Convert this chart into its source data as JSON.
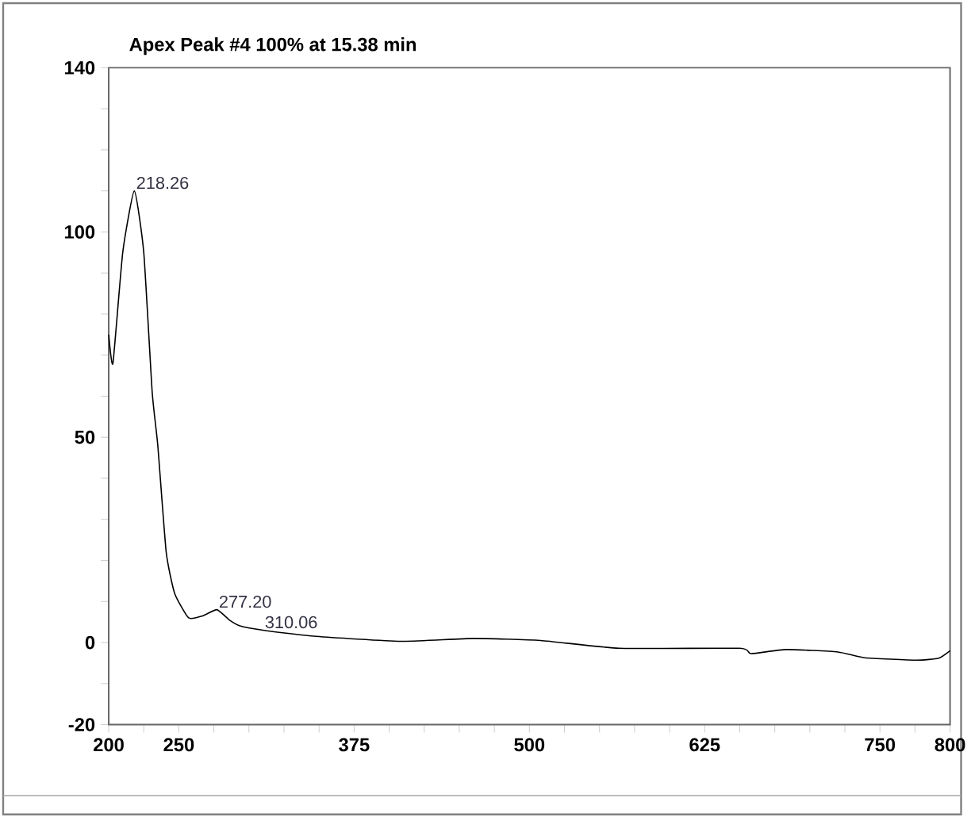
{
  "chart_data": {
    "type": "line",
    "title": "Apex Peak #4 100% at 15.38 min",
    "x": [
      200,
      203,
      210,
      218.26,
      225,
      231,
      235,
      241,
      247,
      257,
      267,
      277.2,
      286,
      294,
      310,
      348,
      408,
      460,
      508,
      564,
      650,
      658,
      683,
      720,
      739,
      776,
      792,
      800
    ],
    "values": [
      75,
      68,
      95,
      110,
      95,
      61,
      48,
      22,
      12,
      6,
      6.5,
      8,
      5.5,
      4,
      3,
      1.5,
      0.3,
      1,
      0.5,
      -1.4,
      -1.4,
      -2.7,
      -1.7,
      -2.3,
      -3.7,
      -4.3,
      -3.8,
      -2
    ],
    "color": "#000000",
    "xlim": [
      200,
      800
    ],
    "xticks": [
      200,
      {
        "value": 225,
        "label": null
      },
      250,
      {
        "value": 275,
        "label": null
      },
      {
        "value": 300,
        "label": null
      },
      {
        "value": 325,
        "label": null
      },
      {
        "value": 350,
        "label": null
      },
      375,
      {
        "value": 400,
        "label": null
      },
      {
        "value": 425,
        "label": null
      },
      {
        "value": 450,
        "label": null
      },
      {
        "value": 475,
        "label": null
      },
      500,
      {
        "value": 525,
        "label": null
      },
      {
        "value": 550,
        "label": null
      },
      {
        "value": 575,
        "label": null
      },
      {
        "value": 600,
        "label": null
      },
      625,
      {
        "value": 650,
        "label": null
      },
      {
        "value": 675,
        "label": null
      },
      {
        "value": 700,
        "label": null
      },
      {
        "value": 725,
        "label": null
      },
      750,
      {
        "value": 775,
        "label": null
      },
      800
    ],
    "ylim": [
      -20,
      140
    ],
    "yticks": [
      -20,
      {
        "value": -10,
        "label": null
      },
      0,
      {
        "value": 10,
        "label": null
      },
      {
        "value": 20,
        "label": null
      },
      {
        "value": 30,
        "label": null
      },
      {
        "value": 40,
        "label": null
      },
      50,
      {
        "value": 60,
        "label": null
      },
      {
        "value": 70,
        "label": null
      },
      {
        "value": 80,
        "label": null
      },
      {
        "value": 90,
        "label": null
      },
      100,
      {
        "value": 110,
        "label": null
      },
      {
        "value": 120,
        "label": null
      },
      {
        "value": 130,
        "label": null
      },
      140
    ],
    "annotations": [
      {
        "text": "218.26",
        "x": 218.26,
        "y": 110
      },
      {
        "text": "277.20",
        "x": 277.2,
        "y": 8
      },
      {
        "text": "310.06",
        "x": 310,
        "y": 3
      }
    ],
    "marker": "none",
    "line_style": "solid"
  }
}
